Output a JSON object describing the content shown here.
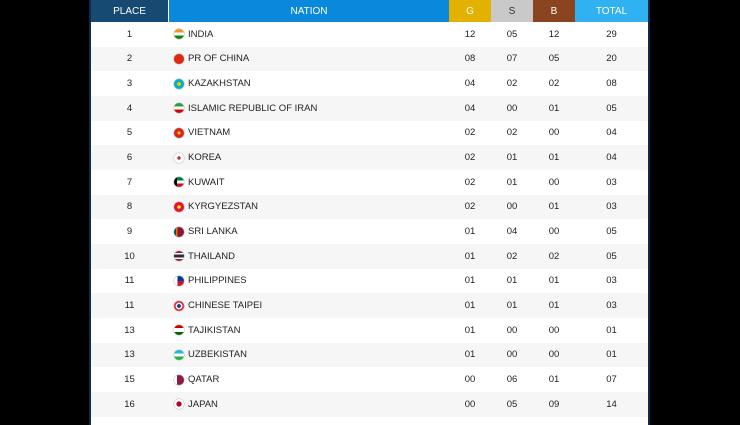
{
  "header": {
    "place": "PLACE",
    "nation": "NATION",
    "gold": "G",
    "silver": "S",
    "bronze": "B",
    "total": "TOTAL"
  },
  "colors": {
    "place_header": "#164a72",
    "nation_header": "#0a88dc",
    "gold": "#e3b100",
    "silver": "#c9c9c9",
    "bronze": "#8a4520",
    "total_header": "#2fb1f2"
  },
  "rows": [
    {
      "place": "1",
      "nation": "INDIA",
      "flag": "linear-gradient(#f7931e 33%,#fff 33%,#fff 66%,#138808 66%)",
      "g": "12",
      "s": "05",
      "b": "12",
      "total": "29"
    },
    {
      "place": "2",
      "nation": "PR OF CHINA",
      "flag": "#de2910",
      "g": "08",
      "s": "07",
      "b": "05",
      "total": "20"
    },
    {
      "place": "3",
      "nation": "KAZAKHSTAN",
      "flag": "radial-gradient(#f5c400 25%,#00afca 30%)",
      "g": "04",
      "s": "02",
      "b": "02",
      "total": "08"
    },
    {
      "place": "4",
      "nation": "ISLAMIC REPUBLIC OF IRAN",
      "flag": "linear-gradient(#239f40 33%,#fff 33%,#fff 66%,#da0000 66%)",
      "g": "04",
      "s": "00",
      "b": "01",
      "total": "05"
    },
    {
      "place": "5",
      "nation": "VIETNAM",
      "flag": "radial-gradient(#ffcd00 20%,#da251d 25%)",
      "g": "02",
      "s": "02",
      "b": "00",
      "total": "04"
    },
    {
      "place": "6",
      "nation": "KOREA",
      "flag": "radial-gradient(#cd2e3a 22%,#fff 28%)",
      "g": "02",
      "s": "01",
      "b": "01",
      "total": "04"
    },
    {
      "place": "7",
      "nation": "KUWAIT",
      "flag": "linear-gradient(90deg,#000 30%,transparent 30%),linear-gradient(#007a3d 33%,#fff 33%,#fff 66%,#ce1126 66%)",
      "g": "02",
      "s": "01",
      "b": "00",
      "total": "03"
    },
    {
      "place": "8",
      "nation": "KYRGYEZSTAN",
      "flag": "radial-gradient(#ffef00 22%,#e8112d 28%)",
      "g": "02",
      "s": "00",
      "b": "01",
      "total": "03"
    },
    {
      "place": "9",
      "nation": "SRI LANKA",
      "flag": "linear-gradient(90deg,#00534e 20%,#eb7400 20%,#eb7400 35%,#8d153a 35%)",
      "g": "01",
      "s": "04",
      "b": "00",
      "total": "05"
    },
    {
      "place": "10",
      "nation": "THAILAND",
      "flag": "linear-gradient(#a51931 18%,#fff 18%,#fff 33%,#2d2a4a 33%,#2d2a4a 66%,#fff 66%,#fff 82%,#a51931 82%)",
      "g": "01",
      "s": "02",
      "b": "02",
      "total": "05"
    },
    {
      "place": "11",
      "nation": "PHILIPPINES",
      "flag": "linear-gradient(90deg,#fff 35%,transparent 35%),linear-gradient(#0038a8 50%,#ce1126 50%)",
      "g": "01",
      "s": "01",
      "b": "01",
      "total": "03"
    },
    {
      "place": "11",
      "nation": "CHINESE TAIPEI",
      "flag": "radial-gradient(#1b3f8b 25%,#fff 30%,#fff 45%,#e0243c 50%)",
      "g": "01",
      "s": "01",
      "b": "01",
      "total": "03"
    },
    {
      "place": "13",
      "nation": "TAJIKISTAN",
      "flag": "linear-gradient(#cc0000 30%,#fff 30%,#fff 70%,#006600 70%)",
      "g": "01",
      "s": "00",
      "b": "00",
      "total": "01"
    },
    {
      "place": "13",
      "nation": "UZBEKISTAN",
      "flag": "linear-gradient(#1eb5e0 33%,#fff 33%,#fff 66%,#1eb53a 66%)",
      "g": "01",
      "s": "00",
      "b": "00",
      "total": "01"
    },
    {
      "place": "15",
      "nation": "QATAR",
      "flag": "linear-gradient(90deg,#fff 30%,#8d1b3d 30%)",
      "g": "00",
      "s": "06",
      "b": "01",
      "total": "07"
    },
    {
      "place": "16",
      "nation": "JAPAN",
      "flag": "radial-gradient(#bc002d 35%,#fff 40%)",
      "g": "00",
      "s": "05",
      "b": "09",
      "total": "14"
    },
    {
      "place": "",
      "nation": "",
      "flag": "",
      "g": "",
      "s": "",
      "b": "",
      "total": ""
    }
  ]
}
